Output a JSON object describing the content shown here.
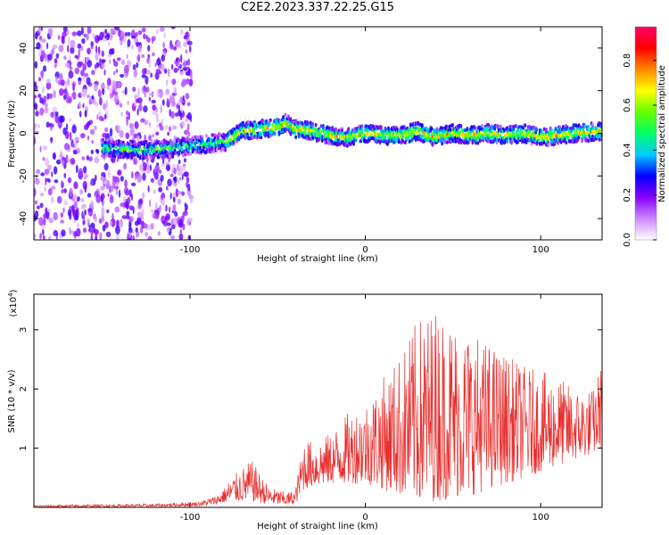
{
  "title": "C2E2.2023.337.22.25.G15",
  "chart_data": [
    {
      "type": "heatmap",
      "xlabel": "Height of straight line (km)",
      "ylabel": "Frequency (Hz)",
      "xlim": [
        -189,
        135
      ],
      "ylim": [
        -50,
        50
      ],
      "xticks": [
        -100,
        0,
        100
      ],
      "yticks": [
        -40,
        -20,
        0,
        20,
        40
      ],
      "xtick_labels": [
        "-100",
        "0",
        "100"
      ],
      "ytick_labels": [
        "-40",
        "-20",
        "0",
        "20",
        "40"
      ],
      "colorbar": {
        "label": "Normalized spectral amplitude",
        "range": [
          0,
          0.95
        ],
        "ticks": [
          0.0,
          0.2,
          0.4,
          0.6,
          0.8
        ],
        "tick_labels": [
          "0.0",
          "0.2",
          "0.4",
          "0.6",
          "0.8"
        ],
        "colors": [
          "#ffffff",
          "#cc88ff",
          "#8800ff",
          "#0000ff",
          "#00ccff",
          "#00ff66",
          "#66ff00",
          "#ffff00",
          "#ff8800",
          "#ff0000",
          "#ff0066"
        ]
      },
      "ridge": {
        "x": [
          -150,
          -130,
          -110,
          -90,
          -80,
          -70,
          -60,
          -50,
          -45,
          -40,
          -30,
          -20,
          -10,
          0,
          10,
          20,
          30,
          40,
          50,
          60,
          70,
          80,
          90,
          100,
          110,
          120,
          135
        ],
        "y": [
          -7,
          -8,
          -7,
          -5,
          -4,
          1,
          2,
          3,
          5,
          2,
          1,
          -1,
          -2,
          0,
          -1,
          -1,
          1,
          -2,
          0,
          -1,
          0,
          -1,
          0,
          -2,
          -1,
          0,
          1
        ]
      }
    },
    {
      "type": "line",
      "xlabel": "Height of straight line (km)",
      "ylabel": "SNR (10 * v/v)",
      "multiplier_label": "(x10",
      "multiplier_exp": "4",
      "xlim": [
        -189,
        135
      ],
      "ylim": [
        0,
        3.6
      ],
      "xticks": [
        -100,
        0,
        100
      ],
      "yticks": [
        1,
        2,
        3
      ],
      "xtick_labels": [
        "-100",
        "0",
        "100"
      ],
      "ytick_labels": [
        "1",
        "2",
        "3"
      ],
      "color": "#e83030",
      "envelope": {
        "x": [
          -189,
          -120,
          -95,
          -85,
          -80,
          -75,
          -65,
          -55,
          -45,
          -40,
          -35,
          -30,
          -20,
          -10,
          0,
          10,
          20,
          30,
          40,
          50,
          60,
          70,
          80,
          90,
          100,
          110,
          120,
          130,
          135
        ],
        "upper": [
          0.04,
          0.06,
          0.1,
          0.2,
          0.35,
          0.55,
          0.8,
          0.35,
          0.25,
          0.3,
          1.2,
          1.1,
          1.25,
          1.6,
          1.8,
          2.2,
          2.6,
          3.2,
          3.4,
          3.2,
          3.0,
          2.8,
          2.6,
          2.4,
          2.3,
          2.2,
          2.0,
          2.0,
          2.5
        ],
        "lower": [
          0.0,
          0.01,
          0.02,
          0.05,
          0.08,
          0.1,
          0.1,
          0.05,
          0.04,
          0.05,
          0.3,
          0.35,
          0.4,
          0.4,
          0.4,
          0.3,
          0.2,
          0.1,
          0.1,
          0.15,
          0.2,
          0.3,
          0.4,
          0.5,
          0.6,
          0.7,
          0.8,
          0.9,
          1.0
        ]
      }
    }
  ]
}
